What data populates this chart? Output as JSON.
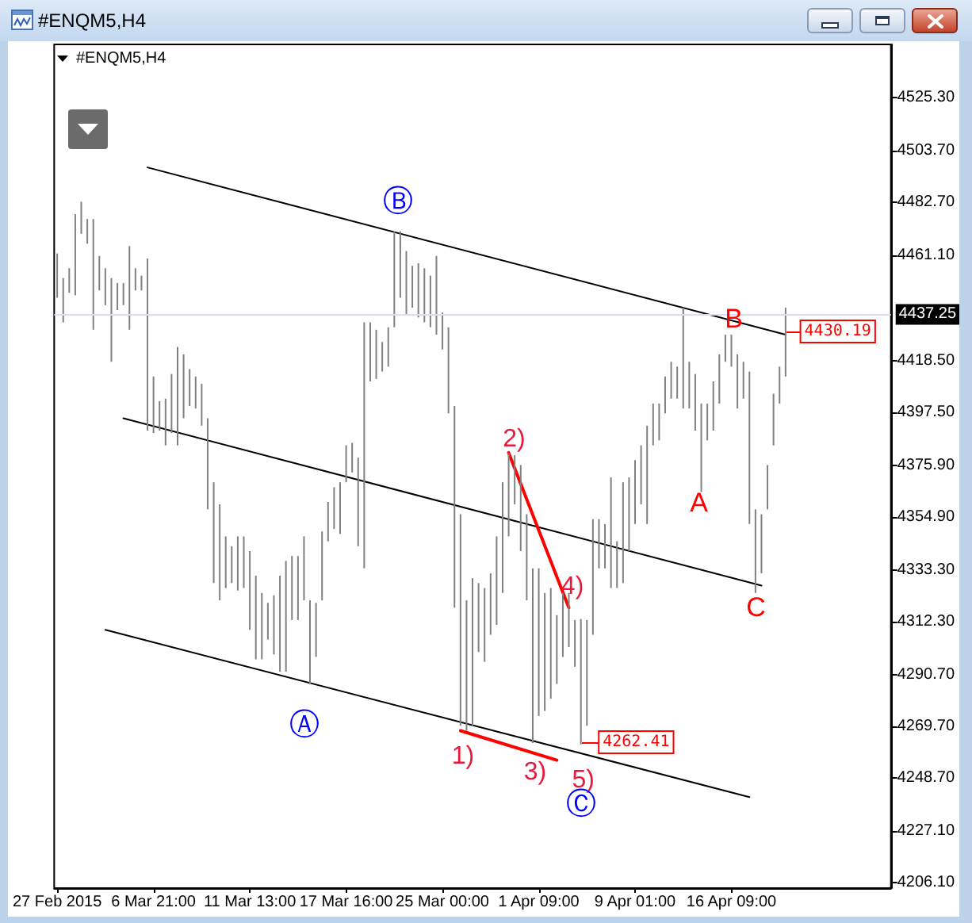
{
  "chart_data": {
    "type": "bar",
    "title": "#ENQM5,H4",
    "subtitle": "#ENQM5,H4",
    "categories": [
      "27 Feb 2015",
      null,
      null,
      null,
      null,
      null,
      null,
      null,
      null,
      null,
      null,
      null,
      null,
      null,
      null,
      null,
      "6 Mar 21:00",
      null,
      null,
      null,
      null,
      null,
      null,
      null,
      null,
      null,
      null,
      null,
      null,
      null,
      null,
      null,
      "11 Mar 13:00",
      null,
      null,
      null,
      null,
      null,
      null,
      null,
      null,
      null,
      null,
      null,
      null,
      null,
      null,
      null,
      "17 Mar 16:00",
      null,
      null,
      null,
      null,
      null,
      null,
      null,
      null,
      null,
      null,
      null,
      null,
      null,
      null,
      null,
      "25 Mar 00:00",
      null,
      null,
      null,
      null,
      null,
      null,
      null,
      null,
      null,
      null,
      null,
      null,
      null,
      null,
      null,
      "1 Apr 09:00",
      null,
      null,
      null,
      null,
      null,
      null,
      null,
      null,
      null,
      null,
      null,
      null,
      null,
      null,
      null,
      "9 Apr 01:00",
      null,
      null,
      null,
      null,
      null,
      null,
      null,
      null,
      null,
      null,
      null,
      null,
      null,
      null,
      null,
      "16 Apr 09:00",
      null,
      null,
      null,
      null,
      null,
      null,
      null,
      null,
      null,
      null,
      null,
      null,
      null,
      null,
      null,
      null,
      null,
      null,
      null,
      null,
      null,
      null,
      null,
      null,
      null,
      null
    ],
    "values": [
      18,
      18,
      10,
      33,
      13,
      10,
      45,
      14,
      15,
      34,
      11,
      9,
      34,
      9,
      6,
      70,
      23,
      12,
      19,
      24,
      40,
      26,
      15,
      13,
      17,
      37,
      41,
      39,
      21,
      15,
      22,
      21,
      32,
      34,
      27,
      15,
      24,
      39,
      45,
      26,
      26,
      26,
      34,
      22,
      28,
      16,
      17,
      21,
      15,
      12,
      36,
      100,
      24,
      20,
      12,
      16,
      39,
      27,
      26,
      17,
      22,
      22,
      21,
      32,
      15,
      35,
      82,
      86,
      53,
      60,
      28,
      30,
      25,
      36,
      45,
      34,
      20,
      35,
      35,
      71,
      60,
      48,
      45,
      28,
      26,
      22,
      19,
      51,
      43,
      47,
      20,
      18,
      45,
      19,
      41,
      30,
      26,
      24,
      40,
      17,
      15,
      15,
      15,
      13,
      41,
      19,
      23,
      36,
      15,
      20,
      20,
      11,
      13,
      22,
      15,
      62,
      34,
      24,
      18,
      21,
      15,
      28,
      null,
      null,
      null,
      null,
      null,
      null,
      null,
      null,
      null,
      null,
      null,
      null,
      null,
      null,
      null,
      null,
      null
    ],
    "base": [
      4444,
      4434,
      4446,
      4445,
      4470,
      4466,
      4431,
      4447,
      4441,
      4418,
      4439,
      4441,
      4431,
      4447,
      4447,
      4390,
      4389,
      4390,
      4384,
      4389,
      4384,
      4395,
      4400,
      4399,
      4392,
      4358,
      4328,
      4321,
      4326,
      4328,
      4325,
      4326,
      4309,
      4297,
      4297,
      4305,
      4299,
      4292,
      4292,
      4313,
      4313,
      4321,
      4287,
      4298,
      4321,
      4345,
      4350,
      4348,
      4369,
      4373,
      4343,
      4334,
      4410,
      4411,
      4414,
      4416,
      4432,
      4444,
      4437,
      4440,
      4436,
      4434,
      4432,
      4429,
      4423,
      4397,
      4318,
      4270,
      4268,
      4270,
      4300,
      4296,
      4307,
      4311,
      4324,
      4347,
      4360,
      4341,
      4321,
      4263,
      4274,
      4276,
      4281,
      4287,
      4298,
      4302,
      4294,
      4262.41,
      4270,
      4307,
      4334,
      4334,
      4326,
      4326,
      4328,
      4341,
      4352,
      4360,
      4352,
      4384,
      4386,
      4397,
      4403,
      4403,
      4399,
      4399,
      4390,
      4365,
      4386,
      4390,
      4401,
      4418,
      4416,
      4399,
      4403,
      4352,
      4324,
      4332,
      4358,
      4384,
      4401,
      4412,
      null,
      null,
      null,
      null,
      null,
      null,
      null,
      null,
      null,
      null,
      null,
      null,
      null,
      null,
      null,
      null,
      null
    ],
    "color": "#808080",
    "series": [
      {
        "type": "line",
        "color": "#000000",
        "values": [
          null,
          null,
          null,
          null,
          null,
          null,
          null,
          null,
          null,
          null,
          null,
          null,
          null,
          null,
          null,
          4497,
          null,
          null,
          null,
          null,
          null,
          null,
          null,
          null,
          null,
          null,
          null,
          null,
          null,
          null,
          null,
          null,
          null,
          null,
          null,
          null,
          null,
          null,
          null,
          null,
          null,
          null,
          null,
          null,
          null,
          null,
          null,
          null,
          null,
          null,
          null,
          null,
          null,
          null,
          null,
          null,
          null,
          null,
          null,
          null,
          null,
          null,
          null,
          null,
          null,
          null,
          null,
          null,
          null,
          null,
          null,
          null,
          null,
          null,
          null,
          null,
          null,
          null,
          null,
          null,
          null,
          null,
          null,
          null,
          null,
          null,
          null,
          null,
          null,
          null,
          null,
          null,
          null,
          null,
          null,
          null,
          null,
          null,
          null,
          null,
          null,
          null,
          null,
          null,
          null,
          null,
          null,
          null,
          null,
          null,
          null,
          null,
          null,
          null,
          null,
          null,
          null,
          null,
          null,
          null,
          null,
          4429,
          null,
          null,
          null,
          null,
          null,
          null,
          null,
          null,
          null,
          null,
          null,
          null,
          null,
          null,
          null,
          null,
          null
        ]
      },
      {
        "type": "line",
        "color": "#000000",
        "values": [
          null,
          null,
          null,
          null,
          null,
          null,
          null,
          null,
          null,
          null,
          null,
          4395,
          null,
          null,
          null,
          null,
          null,
          null,
          null,
          null,
          null,
          null,
          null,
          null,
          null,
          null,
          null,
          null,
          null,
          null,
          null,
          null,
          null,
          null,
          null,
          null,
          null,
          null,
          null,
          null,
          null,
          null,
          null,
          null,
          null,
          null,
          null,
          null,
          null,
          null,
          null,
          null,
          null,
          null,
          null,
          null,
          null,
          null,
          null,
          null,
          null,
          null,
          null,
          null,
          null,
          null,
          null,
          null,
          null,
          null,
          null,
          null,
          null,
          null,
          null,
          null,
          null,
          null,
          null,
          null,
          null,
          null,
          null,
          null,
          null,
          null,
          null,
          null,
          null,
          null,
          null,
          null,
          null,
          null,
          null,
          null,
          null,
          null,
          null,
          null,
          null,
          null,
          null,
          null,
          null,
          null,
          null,
          null,
          null,
          null,
          null,
          null,
          null,
          null,
          null,
          null,
          null,
          4327,
          null,
          null,
          null,
          null,
          null,
          null,
          null,
          null,
          null,
          null,
          null,
          null,
          null,
          null,
          null,
          null,
          null,
          null,
          null,
          null,
          null
        ]
      },
      {
        "type": "line",
        "color": "#000000",
        "values": [
          null,
          null,
          null,
          null,
          null,
          null,
          null,
          null,
          4309,
          null,
          null,
          null,
          null,
          null,
          null,
          null,
          null,
          null,
          null,
          null,
          null,
          null,
          null,
          null,
          null,
          null,
          null,
          null,
          null,
          null,
          null,
          null,
          null,
          null,
          null,
          null,
          null,
          null,
          null,
          null,
          null,
          null,
          null,
          null,
          null,
          null,
          null,
          null,
          null,
          null,
          null,
          null,
          null,
          null,
          null,
          null,
          null,
          null,
          null,
          null,
          null,
          null,
          null,
          null,
          null,
          null,
          null,
          null,
          null,
          null,
          null,
          null,
          null,
          null,
          null,
          null,
          null,
          null,
          null,
          null,
          null,
          null,
          null,
          null,
          null,
          null,
          null,
          null,
          null,
          null,
          null,
          null,
          null,
          null,
          null,
          null,
          null,
          null,
          null,
          null,
          null,
          null,
          null,
          null,
          null,
          null,
          null,
          null,
          null,
          null,
          null,
          null,
          null,
          null,
          null,
          4241,
          null,
          null,
          null,
          null,
          null,
          null,
          null,
          null,
          null,
          null,
          null,
          null,
          null,
          null,
          null,
          null,
          null,
          null,
          null,
          null,
          null,
          null,
          null
        ]
      },
      {
        "type": "line",
        "color": "#ff0000",
        "values": [
          null,
          null,
          null,
          null,
          null,
          null,
          null,
          null,
          null,
          null,
          null,
          null,
          null,
          null,
          null,
          null,
          null,
          null,
          null,
          null,
          null,
          null,
          null,
          null,
          null,
          null,
          null,
          null,
          null,
          null,
          null,
          null,
          null,
          null,
          null,
          null,
          null,
          null,
          null,
          null,
          null,
          null,
          null,
          null,
          null,
          null,
          null,
          null,
          null,
          null,
          null,
          null,
          null,
          null,
          null,
          null,
          null,
          null,
          null,
          null,
          null,
          null,
          null,
          null,
          null,
          null,
          null,
          null,
          null,
          null,
          null,
          null,
          null,
          null,
          null,
          4381,
          null,
          null,
          null,
          null,
          null,
          null,
          null,
          null,
          null,
          4318,
          null,
          null,
          null,
          null,
          null,
          null,
          null,
          null,
          null,
          null,
          null,
          null,
          null,
          null,
          null,
          null,
          null,
          null,
          null,
          null,
          null,
          null,
          null,
          null,
          null,
          null,
          null,
          null,
          null,
          null,
          null,
          null,
          null,
          null,
          null,
          null,
          null,
          null,
          null,
          null,
          null,
          null,
          null,
          null,
          null,
          null,
          null,
          null,
          null,
          null,
          null,
          null,
          null
        ]
      },
      {
        "type": "line",
        "color": "#ff0000",
        "values": [
          null,
          null,
          null,
          null,
          null,
          null,
          null,
          null,
          null,
          null,
          null,
          null,
          null,
          null,
          null,
          null,
          null,
          null,
          null,
          null,
          null,
          null,
          null,
          null,
          null,
          null,
          null,
          null,
          null,
          null,
          null,
          null,
          null,
          null,
          null,
          null,
          null,
          null,
          null,
          null,
          null,
          null,
          null,
          null,
          null,
          null,
          null,
          null,
          null,
          null,
          null,
          null,
          null,
          null,
          null,
          null,
          null,
          null,
          null,
          null,
          null,
          null,
          null,
          null,
          null,
          null,
          null,
          4268,
          null,
          null,
          null,
          null,
          null,
          null,
          null,
          null,
          null,
          null,
          null,
          null,
          null,
          null,
          null,
          4256,
          null,
          null,
          null,
          null,
          null,
          null,
          null,
          null,
          null,
          null,
          null,
          null,
          null,
          null,
          null,
          null,
          null,
          null,
          null,
          null,
          null,
          null,
          null,
          null,
          null,
          null,
          null,
          null,
          null,
          null,
          null,
          null,
          null,
          null,
          null,
          null,
          null,
          null,
          null,
          null,
          null,
          null,
          null,
          null,
          null,
          null,
          null,
          null,
          null,
          null,
          null,
          null,
          null,
          null,
          null
        ]
      }
    ],
    "ylim": [
      4204,
      4547
    ],
    "yticks": [
      {
        "value": 4206.1,
        "label": "4206.10"
      },
      {
        "value": 4227.1,
        "label": "4227.10"
      },
      {
        "value": 4248.7,
        "label": "4248.70"
      },
      {
        "value": 4269.7,
        "label": "4269.70"
      },
      {
        "value": 4290.7,
        "label": "4290.70"
      },
      {
        "value": 4312.3,
        "label": "4312.30"
      },
      {
        "value": 4333.3,
        "label": "4333.30"
      },
      {
        "value": 4354.9,
        "label": "4354.90"
      },
      {
        "value": 4375.9,
        "label": "4375.90"
      },
      {
        "value": 4397.5,
        "label": "4397.50"
      },
      {
        "value": 4418.5,
        "label": "4418.50"
      },
      {
        "value": 4461.1,
        "label": "4461.10"
      },
      {
        "value": 4482.7,
        "label": "4482.70"
      },
      {
        "value": 4503.7,
        "label": "4503.70"
      },
      {
        "value": 4525.3,
        "label": "4525.30"
      }
    ],
    "ref_lines": [
      {
        "axis": "y",
        "value": 4437.25,
        "label": "4437.25",
        "color": "#dcdcf6"
      }
    ],
    "annotations": [
      "Ⓑ",
      "Ⓐ",
      "1)",
      "2)",
      "3)",
      "4)",
      "5)",
      "Ⓒ",
      "A",
      "B",
      "C",
      "4262.41",
      "4430.19"
    ]
  }
}
